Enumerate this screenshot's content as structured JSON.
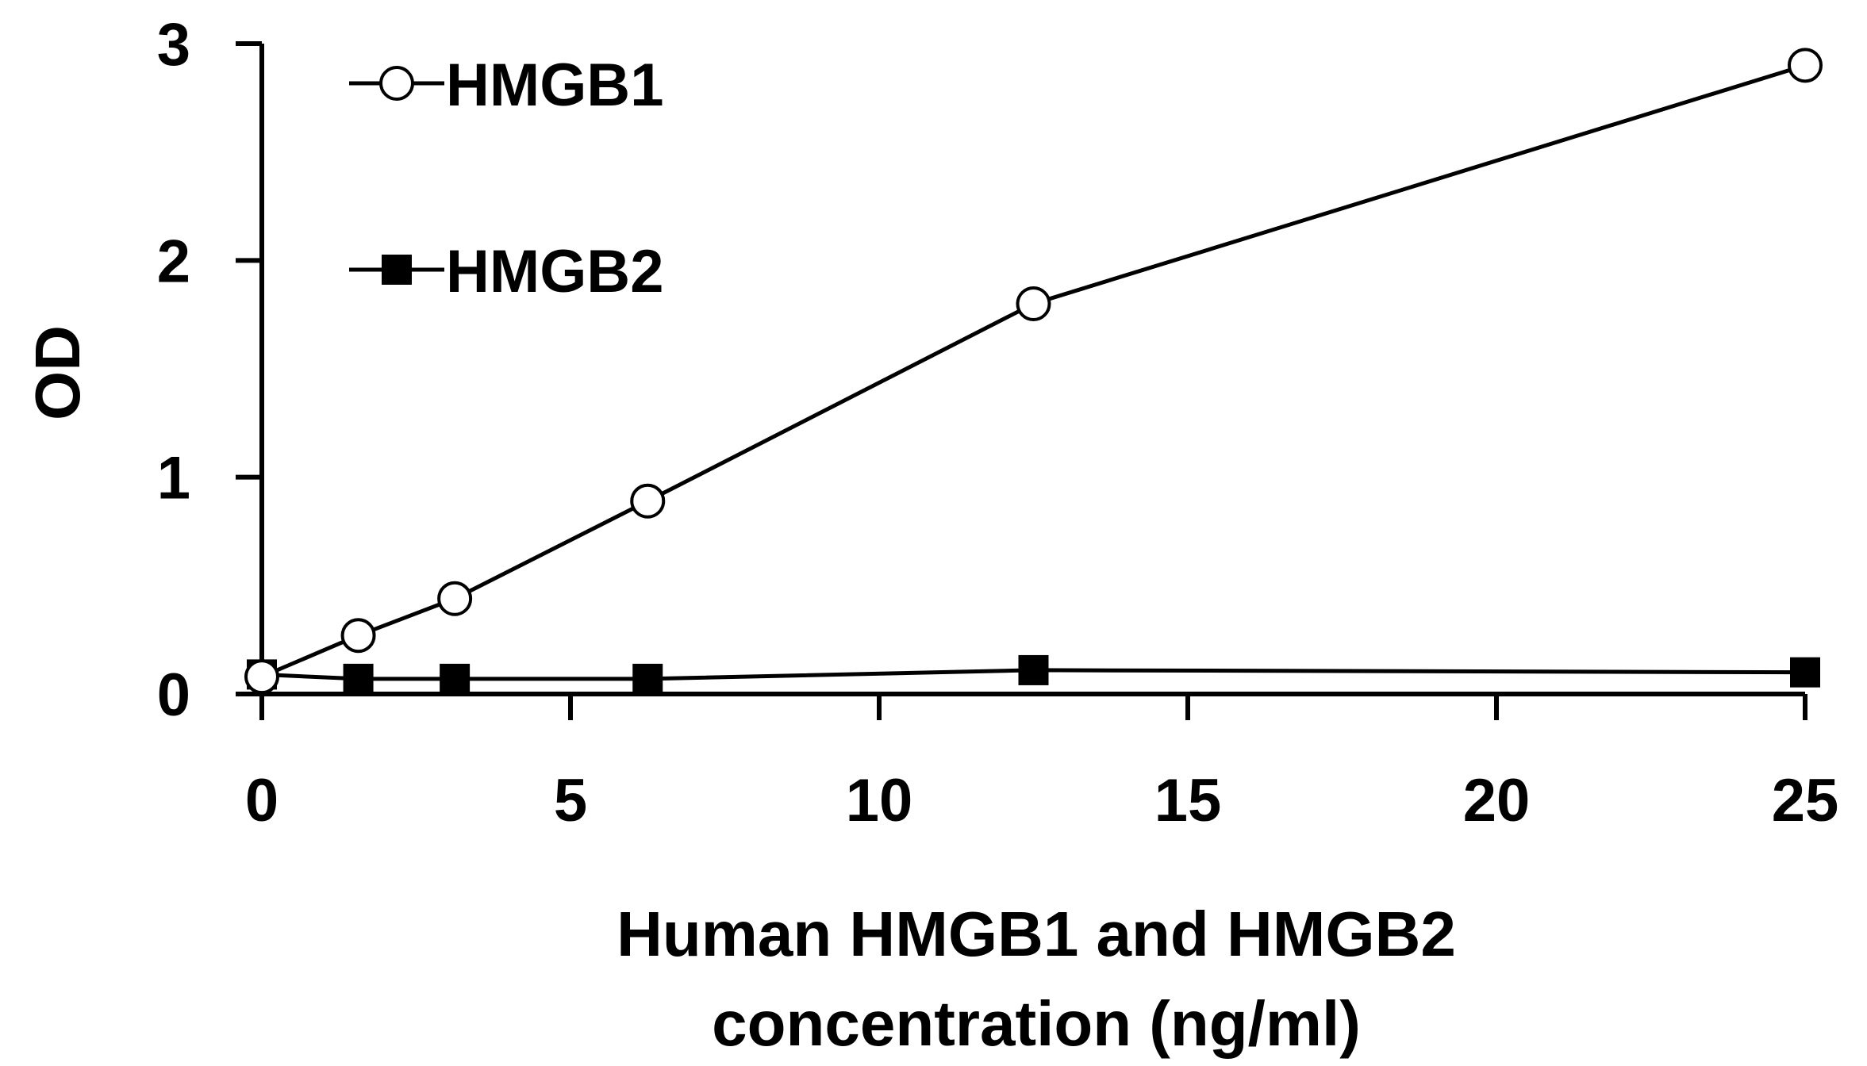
{
  "chart_data": {
    "type": "line",
    "title": "",
    "xlabel": [
      "Human HMGB1 and HMGB2",
      "concentration (ng/ml)"
    ],
    "ylabel": "OD",
    "xlim": [
      0,
      25
    ],
    "ylim": [
      0,
      3
    ],
    "xticks": [
      "0",
      "5",
      "10",
      "15",
      "20",
      "25"
    ],
    "yticks": [
      "0",
      "1",
      "2",
      "3"
    ],
    "grid": false,
    "legend_position": "top-left",
    "series": [
      {
        "name": "HMGB1",
        "marker": "open-circle",
        "x": [
          0,
          1.5625,
          3.125,
          6.25,
          12.5,
          25
        ],
        "y": [
          0.08,
          0.27,
          0.44,
          0.89,
          1.8,
          2.9
        ]
      },
      {
        "name": "HMGB2",
        "marker": "filled-square",
        "x": [
          0,
          1.5625,
          3.125,
          6.25,
          12.5,
          25
        ],
        "y": [
          0.09,
          0.07,
          0.07,
          0.07,
          0.11,
          0.1
        ]
      }
    ],
    "colors": {
      "line": "#000000",
      "marker_fill_open": "#ffffff",
      "marker_fill_solid": "#000000"
    }
  }
}
